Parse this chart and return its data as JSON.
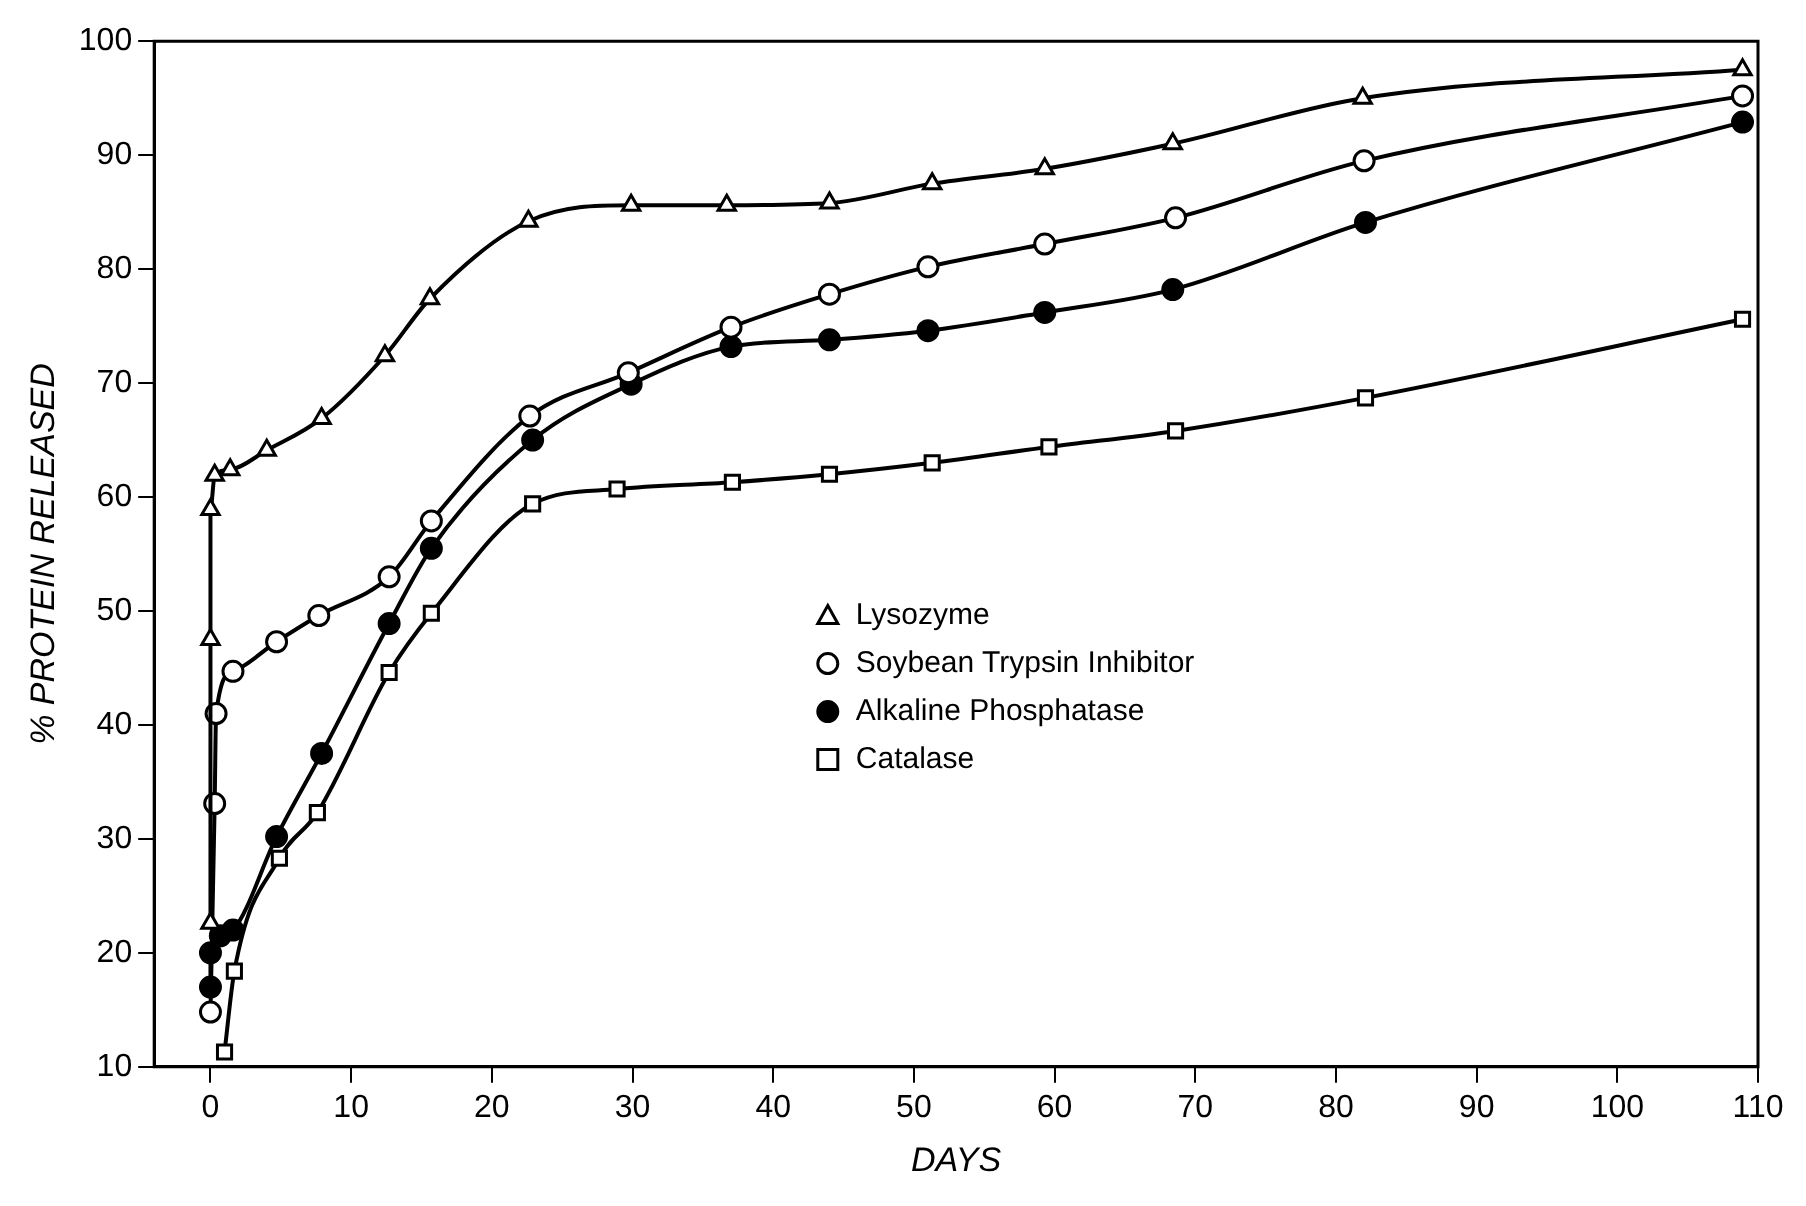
{
  "chart_data": {
    "type": "line",
    "xlabel": "DAYS",
    "ylabel": "% PROTEIN RELEASED",
    "xlim": [
      -4,
      110
    ],
    "ylim": [
      10,
      100
    ],
    "xticks": [
      0,
      10,
      20,
      30,
      40,
      50,
      60,
      70,
      80,
      90,
      100,
      110
    ],
    "yticks": [
      10,
      20,
      30,
      40,
      50,
      60,
      70,
      80,
      90,
      100
    ],
    "grid": false,
    "legend": "center",
    "line_style": "solid",
    "series": [
      {
        "name": "Lysozyme",
        "color": "#000000",
        "marker": "triangle",
        "x": [
          0,
          0,
          0,
          0.3,
          1.4,
          4,
          7.9,
          12.4,
          15.6,
          22.6,
          29.9,
          36.7,
          44,
          51.3,
          59.3,
          68.4,
          81.9,
          108.9
        ],
        "values": [
          22.6,
          47.5,
          58.9,
          61.9,
          62.4,
          64.1,
          66.9,
          72.4,
          77.4,
          84.2,
          85.6,
          85.6,
          85.8,
          87.5,
          88.8,
          91,
          95,
          97.5
        ]
      },
      {
        "name": "Soybean Trypsin Inhibitor",
        "color": "#000000",
        "marker": "circle",
        "x": [
          0,
          0.3,
          0.4,
          1.6,
          4.7,
          7.7,
          12.7,
          15.7,
          22.7,
          29.7,
          37,
          44,
          51,
          59.3,
          68.6,
          82,
          108.9
        ],
        "values": [
          14.8,
          33.1,
          41,
          44.7,
          47.3,
          49.6,
          53,
          57.9,
          67.1,
          70.9,
          74.9,
          77.8,
          80.2,
          82.2,
          84.5,
          89.5,
          95.2
        ]
      },
      {
        "name": "Alkaline Phosphatase",
        "color": "#000000",
        "marker": "filled circle",
        "x": [
          0,
          0,
          0.7,
          1.6,
          4.7,
          7.9,
          12.7,
          15.7,
          22.9,
          29.9,
          37,
          44,
          51,
          59.3,
          68.4,
          82.1,
          108.9
        ],
        "values": [
          17,
          20,
          21.5,
          22,
          30.2,
          37.5,
          48.9,
          55.5,
          65,
          69.9,
          73.2,
          73.8,
          74.6,
          76.2,
          78.2,
          84.1,
          92.9
        ]
      },
      {
        "name": "Catalase",
        "color": "#000000",
        "marker": "square",
        "x": [
          1,
          1.7,
          4.9,
          7.6,
          12.7,
          15.7,
          22.9,
          28.9,
          37.1,
          44,
          51.3,
          59.6,
          68.6,
          82.1,
          108.9
        ],
        "values": [
          11.3,
          18.4,
          28.3,
          32.3,
          44.6,
          49.8,
          59.4,
          60.7,
          61.3,
          62,
          63,
          64.4,
          65.8,
          68.7,
          75.6
        ]
      }
    ]
  }
}
